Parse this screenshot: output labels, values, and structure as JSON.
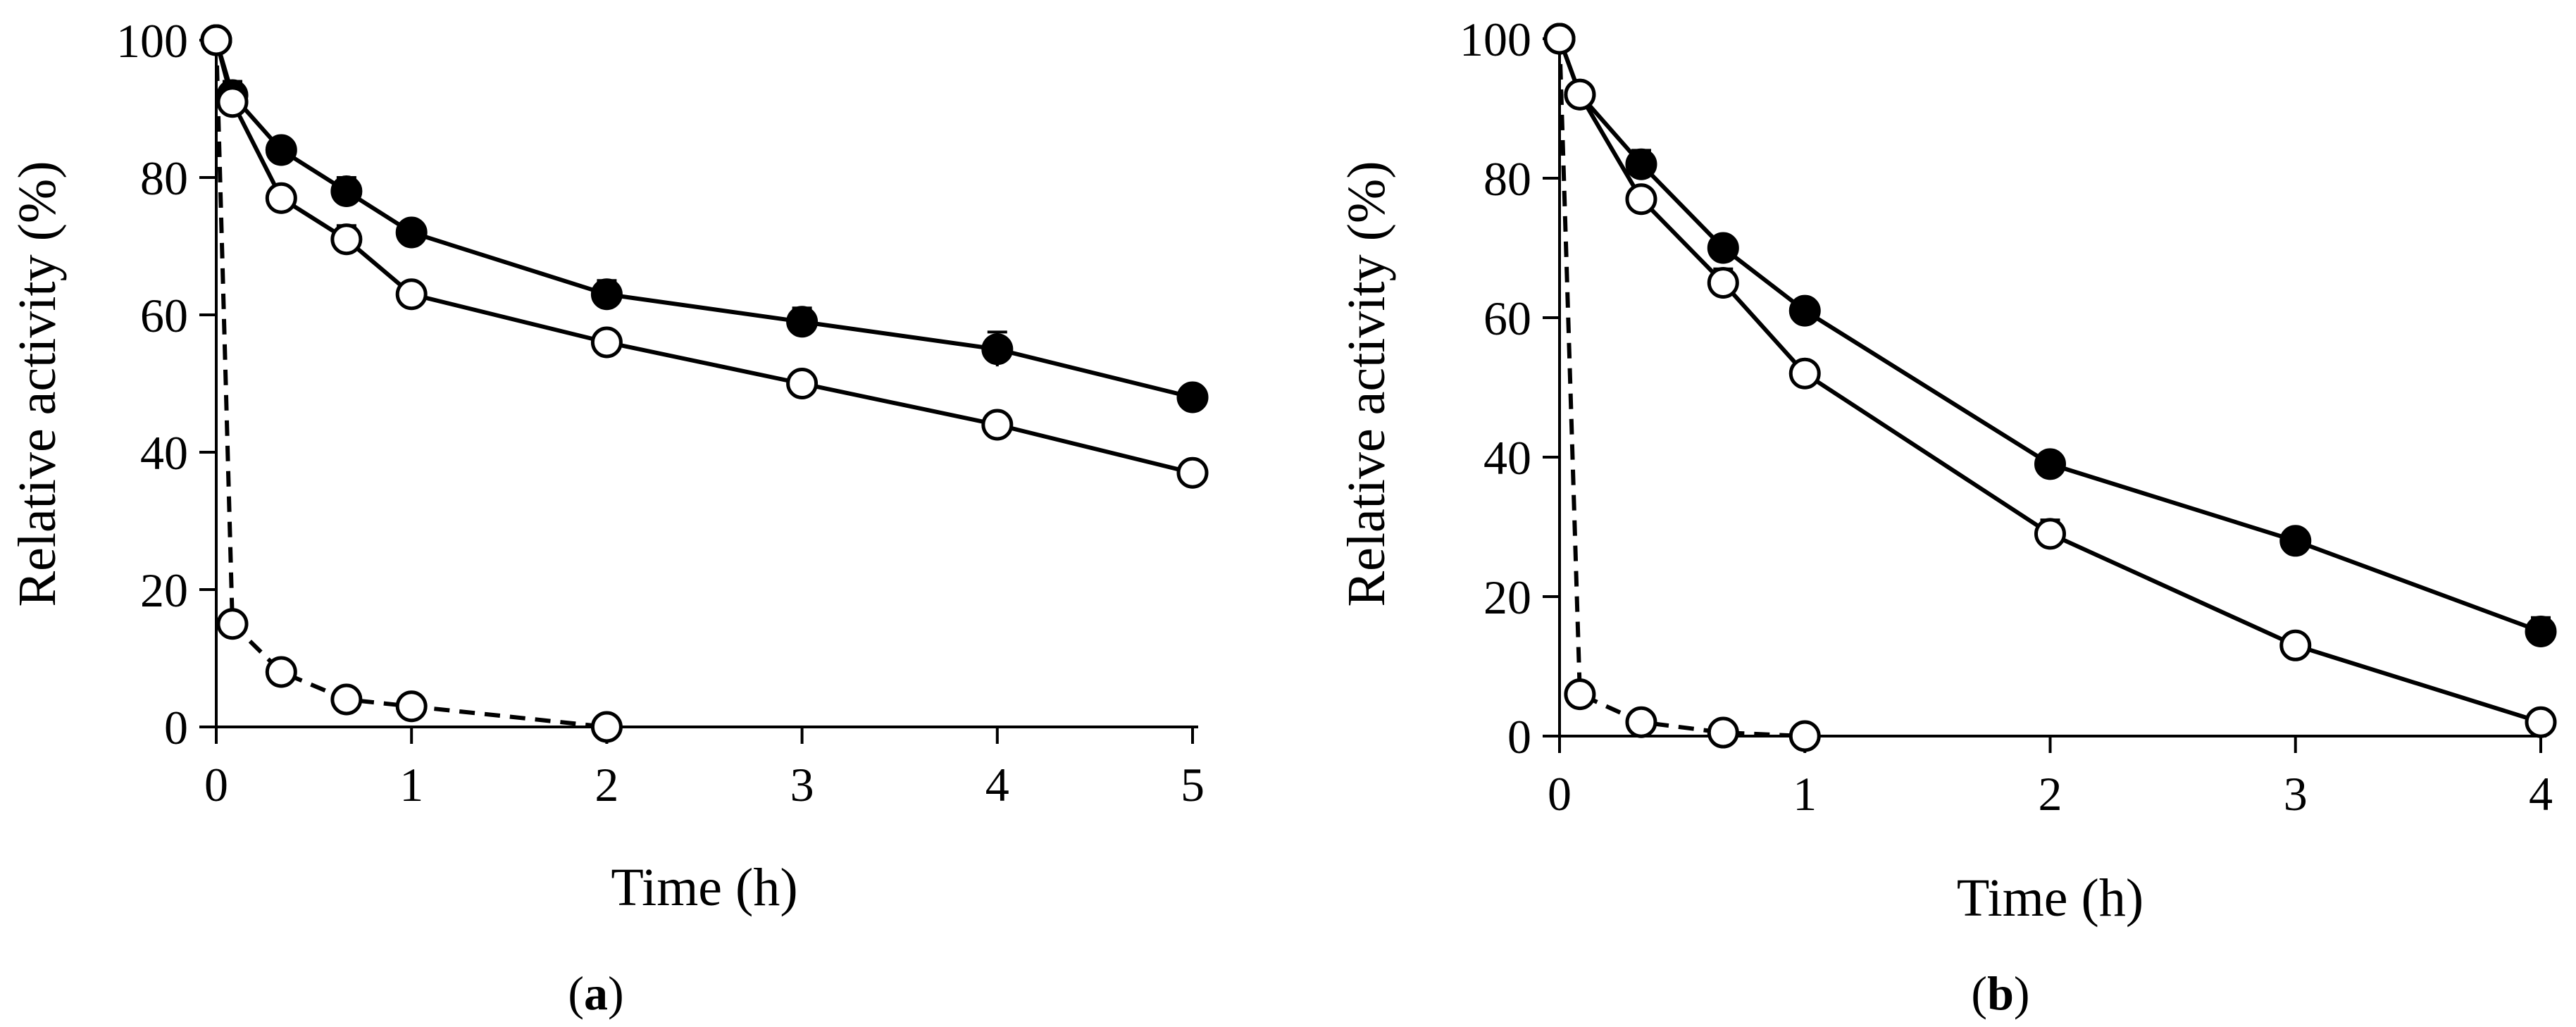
{
  "chart_data": [
    {
      "type": "line",
      "panel_label": "(a)",
      "panel_letter": "a",
      "xlabel": "Time (h)",
      "ylabel": "Relative activity (%)",
      "xlim": [
        0,
        5
      ],
      "ylim": [
        0,
        100
      ],
      "xticks": [
        "0",
        "1",
        "2",
        "3",
        "4",
        "5"
      ],
      "yticks": [
        "0",
        "20",
        "40",
        "60",
        "80",
        "100"
      ],
      "grid": false,
      "series": [
        {
          "name": "filled circles (solid line)",
          "marker": "filled-circle",
          "line": "solid",
          "x": [
            0,
            0.083,
            0.333,
            0.667,
            1,
            2,
            3,
            4,
            5
          ],
          "values": [
            100,
            92,
            84,
            78,
            72,
            63,
            59,
            55,
            48
          ],
          "error": [
            0,
            2,
            1.5,
            2,
            1,
            2,
            2,
            2.5,
            1
          ]
        },
        {
          "name": "open circles (solid line)",
          "marker": "open-circle",
          "line": "solid",
          "x": [
            0,
            0.083,
            0.333,
            0.667,
            1,
            2,
            3,
            4,
            5
          ],
          "values": [
            100,
            91,
            77,
            71,
            63,
            56,
            50,
            44,
            37
          ],
          "error": [
            0,
            1,
            1,
            2,
            1,
            1.5,
            1,
            1,
            1
          ]
        },
        {
          "name": "open circles (dashed line)",
          "marker": "open-circle",
          "line": "dashed",
          "x": [
            0,
            0.083,
            0.333,
            0.667,
            1,
            2
          ],
          "values": [
            100,
            15,
            8,
            4,
            3,
            0
          ],
          "error": [
            0,
            1,
            1,
            1,
            0.5,
            0
          ]
        }
      ]
    },
    {
      "type": "line",
      "panel_label": "(b)",
      "panel_letter": "b",
      "xlabel": "Time (h)",
      "ylabel": "Relative activity (%)",
      "xlim": [
        0,
        4
      ],
      "ylim": [
        0,
        100
      ],
      "xticks": [
        "0",
        "1",
        "2",
        "3",
        "4"
      ],
      "yticks": [
        "0",
        "20",
        "40",
        "60",
        "80",
        "100"
      ],
      "grid": false,
      "series": [
        {
          "name": "filled circles (solid line)",
          "marker": "filled-circle",
          "line": "solid",
          "x": [
            0,
            0.083,
            0.333,
            0.667,
            1,
            2,
            3,
            4
          ],
          "values": [
            100,
            92,
            82,
            70,
            61,
            39,
            28,
            15
          ],
          "error": [
            0,
            1.5,
            2,
            1.5,
            1,
            1.5,
            1.5,
            2
          ]
        },
        {
          "name": "open circles (solid line)",
          "marker": "open-circle",
          "line": "solid",
          "x": [
            0,
            0.083,
            0.333,
            0.667,
            1,
            2,
            3,
            4
          ],
          "values": [
            100,
            92,
            77,
            65,
            52,
            29,
            13,
            2
          ],
          "error": [
            0,
            1,
            1,
            2,
            1,
            2,
            1,
            1
          ]
        },
        {
          "name": "open circles (dashed line)",
          "marker": "open-circle",
          "line": "dashed",
          "x": [
            0,
            0.083,
            0.333,
            0.667,
            1
          ],
          "values": [
            100,
            6,
            2,
            0.5,
            0
          ],
          "error": [
            0,
            1,
            0.5,
            0.5,
            0
          ]
        }
      ]
    }
  ]
}
